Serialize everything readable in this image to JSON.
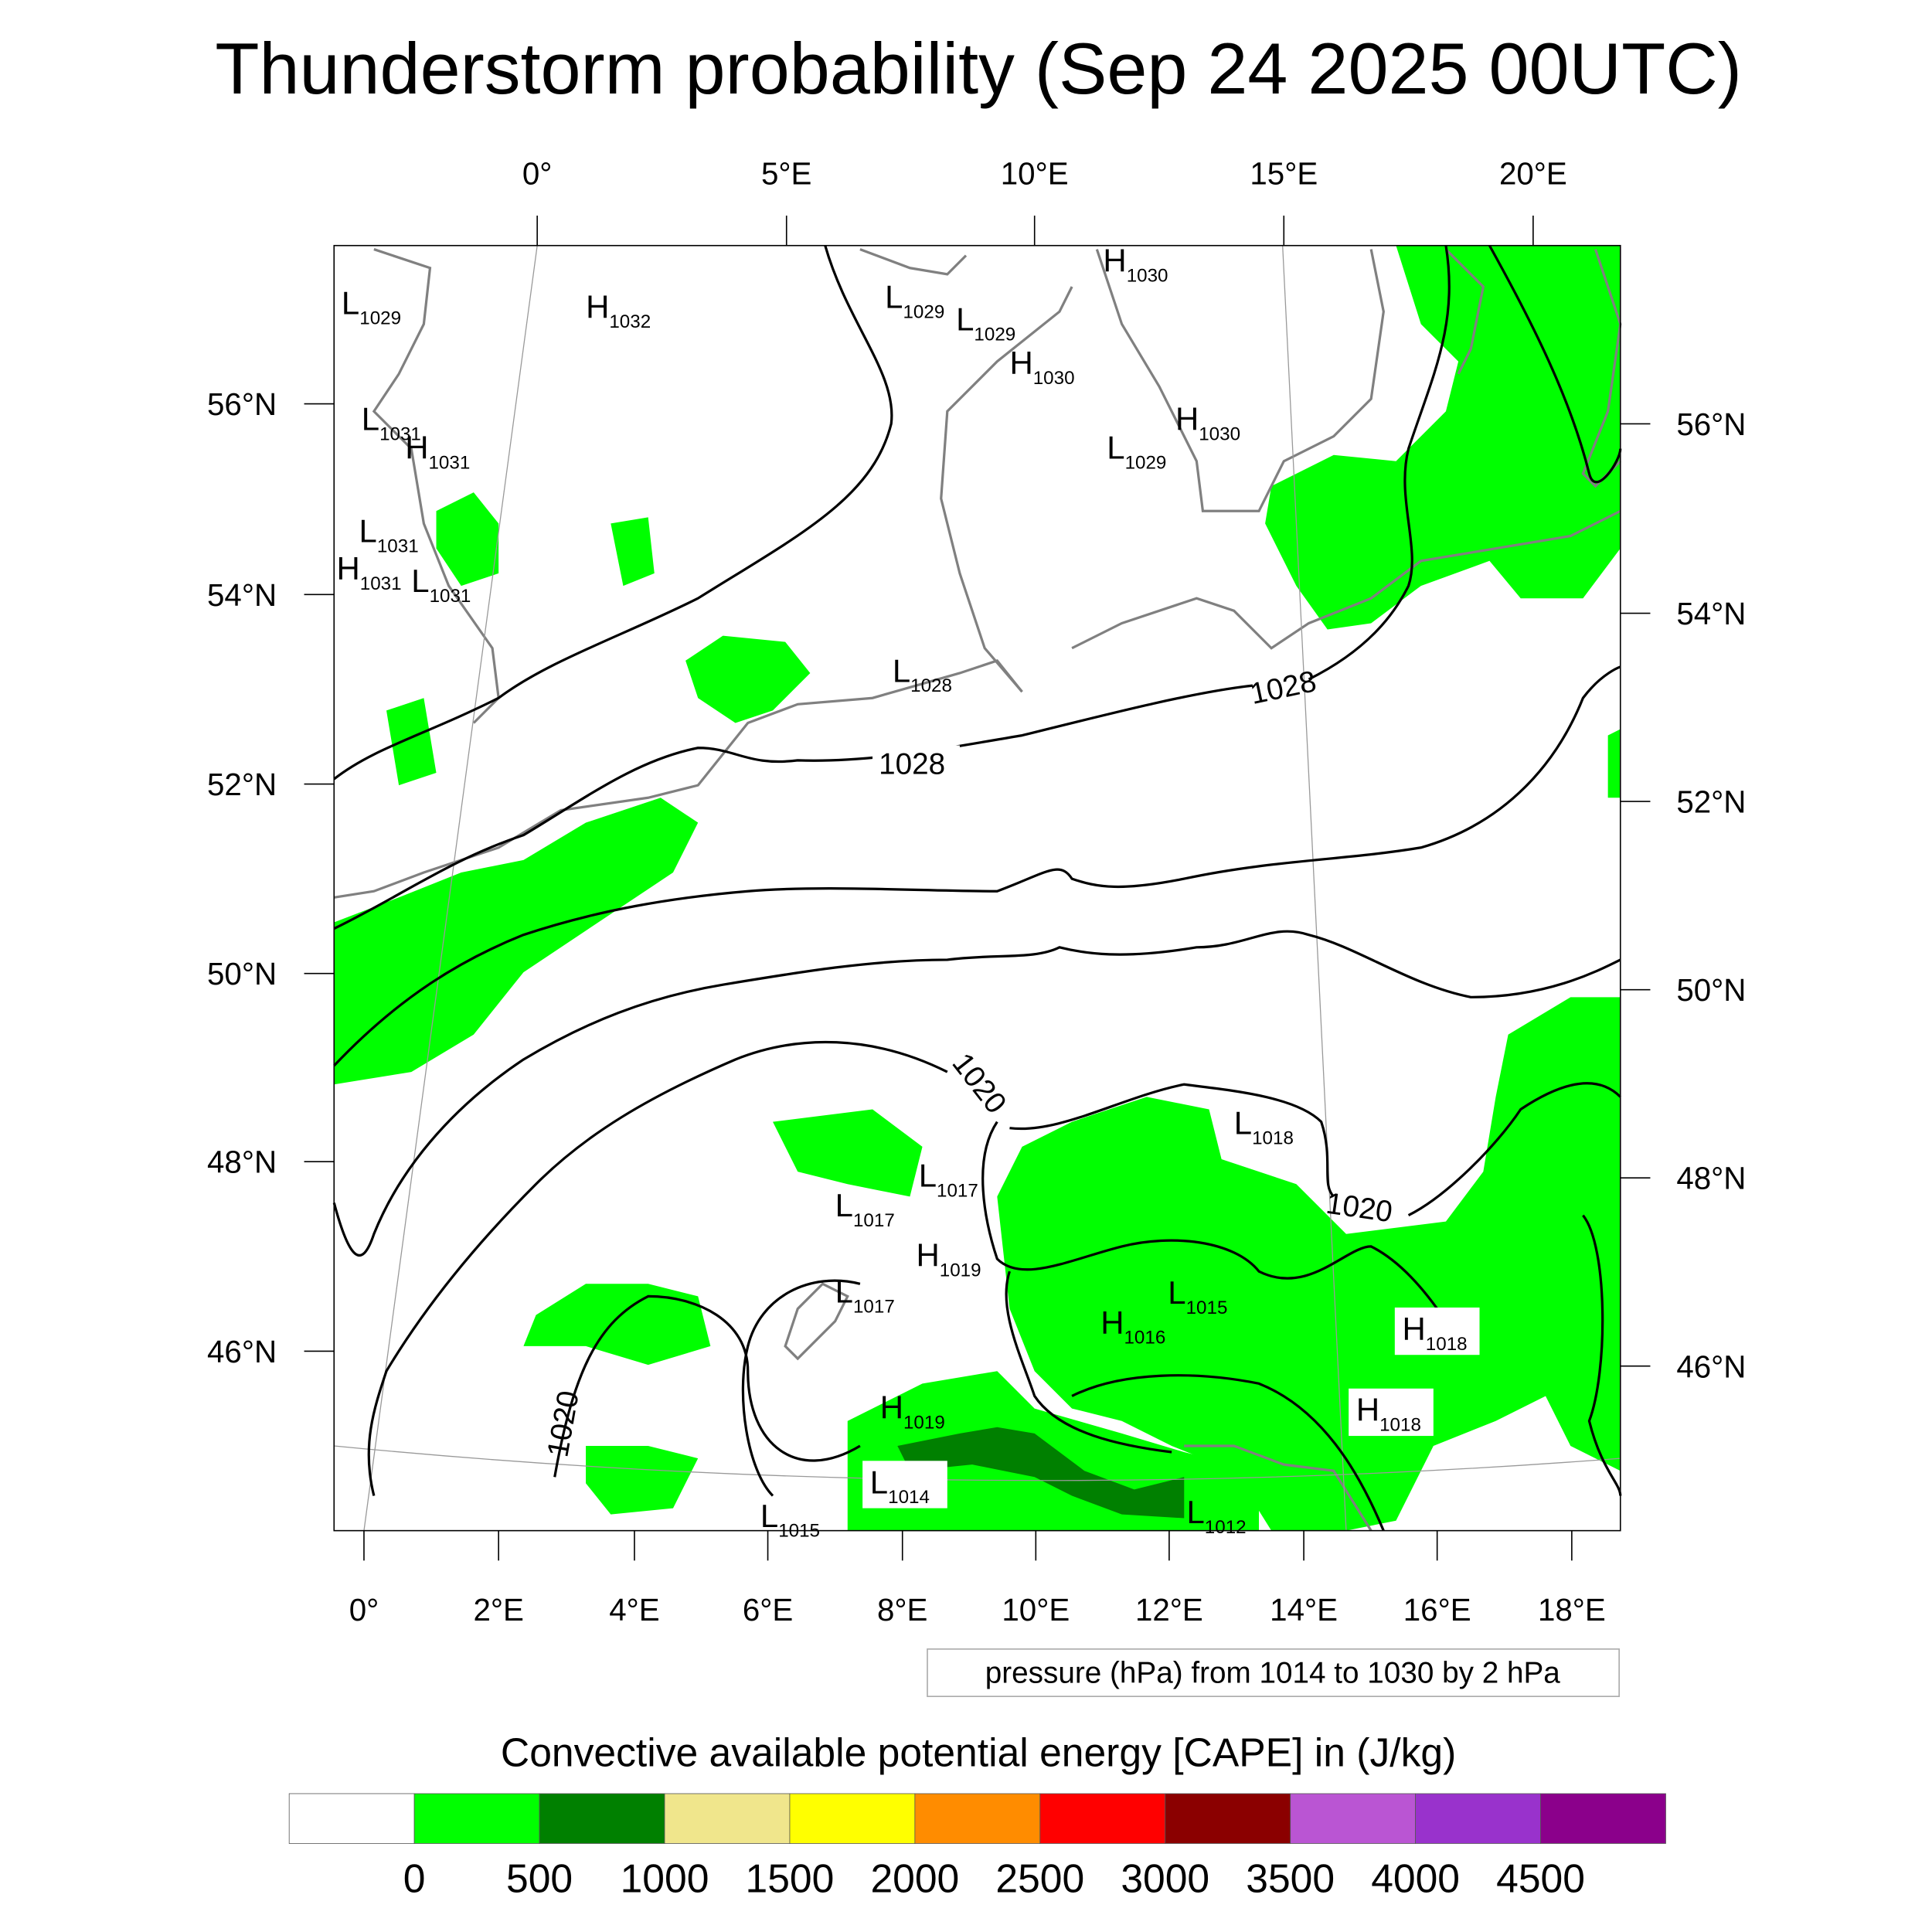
{
  "title": "Thunderstorm probability (Sep 24 2025 00UTC)",
  "top_lon_ticks": [
    "0°",
    "5°E",
    "10°E",
    "15°E",
    "20°E"
  ],
  "bottom_lon_ticks": [
    "0°",
    "2°E",
    "4°E",
    "6°E",
    "8°E",
    "10°E",
    "12°E",
    "14°E",
    "16°E",
    "18°E"
  ],
  "left_lat_ticks": [
    "56°N",
    "54°N",
    "52°N",
    "50°N",
    "48°N",
    "46°N"
  ],
  "right_lat_ticks": [
    "56°N",
    "54°N",
    "52°N",
    "50°N",
    "48°N",
    "46°N"
  ],
  "contour_info": "pressure (hPa) from 1014 to 1030 by 2 hPa",
  "contour_labels": [
    "1028",
    "1028",
    "1020",
    "1020",
    "1020"
  ],
  "pressure_centers": [
    {
      "type": "L",
      "value": "1029"
    },
    {
      "type": "H",
      "value": "1032"
    },
    {
      "type": "L",
      "value": "1029"
    },
    {
      "type": "L",
      "value": "1029"
    },
    {
      "type": "H",
      "value": "1030"
    },
    {
      "type": "H",
      "value": "1030"
    },
    {
      "type": "H",
      "value": "1030"
    },
    {
      "type": "L",
      "value": "1029"
    },
    {
      "type": "L",
      "value": "1031"
    },
    {
      "type": "H",
      "value": "1031"
    },
    {
      "type": "L",
      "value": "1031"
    },
    {
      "type": "H",
      "value": "1031"
    },
    {
      "type": "L",
      "value": "1031"
    },
    {
      "type": "L",
      "value": "1028"
    },
    {
      "type": "L",
      "value": "1018"
    },
    {
      "type": "L",
      "value": "1017"
    },
    {
      "type": "L",
      "value": "1017"
    },
    {
      "type": "H",
      "value": "1019"
    },
    {
      "type": "L",
      "value": "1017"
    },
    {
      "type": "L",
      "value": "1015"
    },
    {
      "type": "H",
      "value": "1016"
    },
    {
      "type": "H",
      "value": "1018"
    },
    {
      "type": "H",
      "value": "1018"
    },
    {
      "type": "H",
      "value": "1019"
    },
    {
      "type": "L",
      "value": "1014"
    },
    {
      "type": "L",
      "value": "1015"
    },
    {
      "type": "L",
      "value": "1012"
    }
  ],
  "colorbar": {
    "title": "Convective available potential energy [CAPE] in (J/kg)",
    "labels": [
      "0",
      "500",
      "1000",
      "1500",
      "2000",
      "2500",
      "3000",
      "3500",
      "4000",
      "4500"
    ],
    "colors": [
      "#ffffff",
      "#00ff00",
      "#008000",
      "#f0e68c",
      "#ffff00",
      "#ff8c00",
      "#ff0000",
      "#8b0000",
      "#ba55d3",
      "#9932cc",
      "#8b008b"
    ]
  }
}
